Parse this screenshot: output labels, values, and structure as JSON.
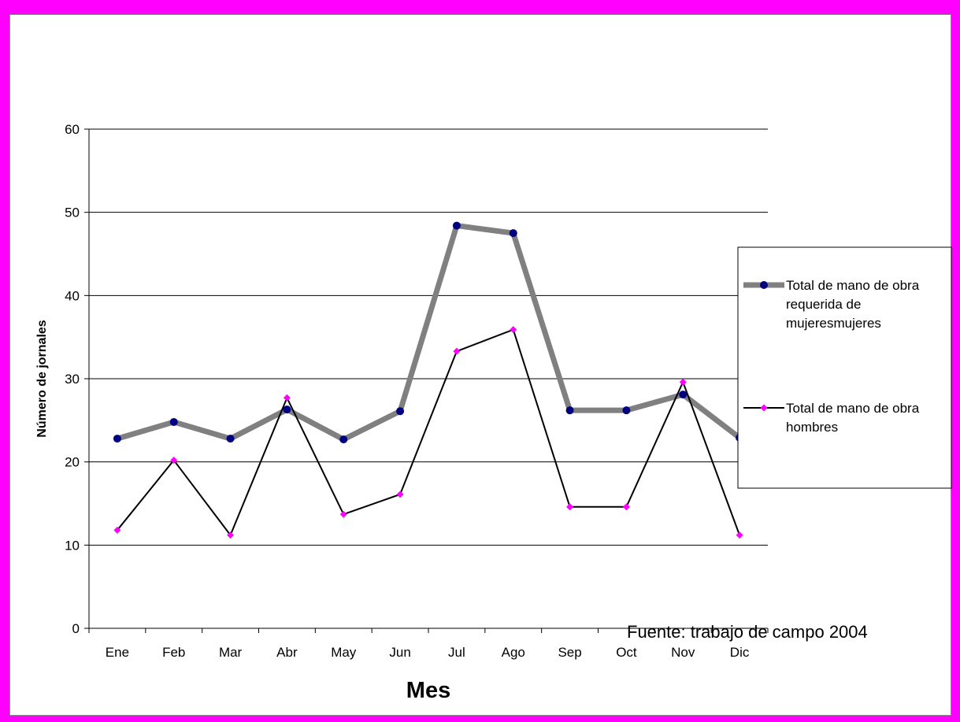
{
  "chart_data": {
    "type": "line",
    "title": "",
    "xlabel": "Mes",
    "ylabel": "Número de jornales",
    "categories": [
      "Ene",
      "Feb",
      "Mar",
      "Abr",
      "May",
      "Jun",
      "Jul",
      "Ago",
      "Sep",
      "Oct",
      "Nov",
      "Dic"
    ],
    "ylim": [
      0,
      60
    ],
    "yticks": [
      0,
      10,
      20,
      30,
      40,
      50,
      60
    ],
    "grid": true,
    "legend_position": "right",
    "series": [
      {
        "name": "Total de mano de obra requerida de mujeresmujeres",
        "legend_lines": [
          "Total de mano de obra",
          "requerida de",
          "mujeresmujeres"
        ],
        "values": [
          22.8,
          24.8,
          22.8,
          26.3,
          22.7,
          26.1,
          48.4,
          47.5,
          26.2,
          26.2,
          28.1,
          22.9
        ],
        "line_color": "#808080",
        "marker_color": "#000080",
        "marker": "circle"
      },
      {
        "name": "Total de mano de obra hombres",
        "legend_lines": [
          "Total de mano de obra",
          "hombres"
        ],
        "values": [
          11.8,
          20.2,
          11.2,
          27.7,
          13.7,
          16.1,
          33.3,
          35.9,
          14.6,
          14.6,
          29.6,
          11.2
        ],
        "line_color": "#000000",
        "marker_color": "#ff00ff",
        "marker": "diamond"
      }
    ],
    "annotation": "Fuente: trabajo de campo 2004"
  },
  "colors": {
    "frame": "#ff00ff",
    "background": "#ffffff",
    "gridline": "#000000"
  }
}
